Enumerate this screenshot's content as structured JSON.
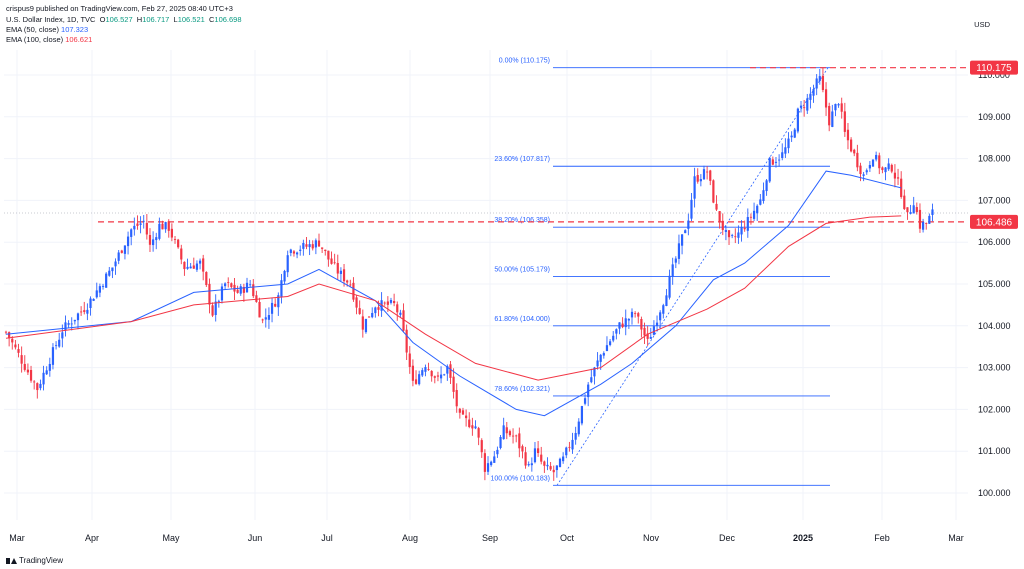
{
  "header": {
    "publisher": "crispus9 published on TradingView.com, Feb 27, 2025 08:40 UTC+3",
    "symbol": "U.S. Dollar Index, 1D, TVC",
    "ohlc": {
      "o_label": "O",
      "o": "106.527",
      "h_label": "H",
      "h": "106.717",
      "l_label": "L",
      "l": "106.521",
      "c_label": "C",
      "c": "106.698"
    },
    "ema50": {
      "label": "EMA (50, close)",
      "value": "107.323"
    },
    "ema100": {
      "label": "EMA (100, close)",
      "value": "106.621"
    }
  },
  "currency": "USD",
  "brand": "TradingView",
  "colors": {
    "up": "#2962ff",
    "down": "#f23645",
    "ema50": "#2962ff",
    "ema100": "#f23645",
    "fib": "#2962ff",
    "grid": "#f0f3fa",
    "axis_text": "#131722"
  },
  "chart_data": {
    "type": "candlestick",
    "x_ticks": [
      "Mar",
      "Apr",
      "May",
      "Jun",
      "Jul",
      "Aug",
      "Sep",
      "Oct",
      "Nov",
      "Dec",
      "2025",
      "Feb",
      "Mar"
    ],
    "y_ticks": [
      "100.000",
      "101.000",
      "102.000",
      "103.000",
      "104.000",
      "105.000",
      "106.000",
      "107.000",
      "108.000",
      "109.000",
      "110.000"
    ],
    "ylim": [
      99.6,
      110.9
    ],
    "price_labels": [
      {
        "text": "110.175",
        "value": 110.175,
        "color": "#f23645"
      },
      {
        "text": "106.486",
        "value": 106.486,
        "color": "#f23645"
      }
    ],
    "fib_levels": [
      {
        "label": "0.00% (110.175)",
        "value": 110.175
      },
      {
        "label": "23.60% (107.817)",
        "value": 107.817
      },
      {
        "label": "38.20% (106.358)",
        "value": 106.358
      },
      {
        "label": "50.00% (105.179)",
        "value": 105.179
      },
      {
        "label": "61.80% (104.000)",
        "value": 104.0
      },
      {
        "label": "78.60% (102.321)",
        "value": 102.321
      },
      {
        "label": "100.00% (100.183)",
        "value": 100.183
      }
    ],
    "candles": {
      "count": 260,
      "anchors": [
        [
          0,
          103.85
        ],
        [
          10,
          102.5
        ],
        [
          18,
          103.9
        ],
        [
          26,
          104.5
        ],
        [
          34,
          105.4
        ],
        [
          40,
          106.3
        ],
        [
          44,
          106.5
        ],
        [
          46,
          105.9
        ],
        [
          49,
          106.4
        ],
        [
          52,
          106.35
        ],
        [
          57,
          105.4
        ],
        [
          62,
          105.5
        ],
        [
          66,
          104.3
        ],
        [
          70,
          105.0
        ],
        [
          74,
          104.8
        ],
        [
          78,
          105.0
        ],
        [
          82,
          104.1
        ],
        [
          87,
          104.7
        ],
        [
          90,
          105.8
        ],
        [
          96,
          105.9
        ],
        [
          100,
          106.0
        ],
        [
          103,
          105.6
        ],
        [
          106,
          105.3
        ],
        [
          110,
          105.0
        ],
        [
          114,
          104.0
        ],
        [
          118,
          104.5
        ],
        [
          124,
          104.5
        ],
        [
          126,
          104.2
        ],
        [
          130,
          102.6
        ],
        [
          134,
          103.1
        ],
        [
          138,
          102.7
        ],
        [
          141,
          103.0
        ],
        [
          145,
          101.8
        ],
        [
          150,
          101.6
        ],
        [
          153,
          100.6
        ],
        [
          156,
          100.9
        ],
        [
          159,
          101.5
        ],
        [
          163,
          101.3
        ],
        [
          167,
          100.6
        ],
        [
          169,
          101.0
        ],
        [
          172,
          100.6
        ],
        [
          175,
          100.5
        ],
        [
          178,
          100.8
        ],
        [
          182,
          101.5
        ],
        [
          186,
          102.6
        ],
        [
          190,
          103.3
        ],
        [
          196,
          104.0
        ],
        [
          201,
          104.3
        ],
        [
          205,
          103.6
        ],
        [
          210,
          104.6
        ],
        [
          214,
          105.6
        ],
        [
          218,
          106.6
        ],
        [
          220,
          107.5
        ],
        [
          224,
          107.7
        ],
        [
          227,
          106.7
        ],
        [
          231,
          106.0
        ],
        [
          234,
          106.2
        ],
        [
          237,
          106.5
        ],
        [
          241,
          107.0
        ],
        [
          244,
          107.9
        ],
        [
          248,
          108.1
        ],
        [
          251,
          108.5
        ],
        [
          253,
          109.1
        ],
        [
          256,
          109.4
        ],
        [
          259,
          109.8
        ]
      ],
      "anchors_2025": [
        [
          0,
          109.9
        ],
        [
          3,
          108.9
        ],
        [
          6,
          109.4
        ],
        [
          8,
          108.6
        ],
        [
          12,
          107.9
        ],
        [
          14,
          107.6
        ],
        [
          17,
          108.1
        ],
        [
          20,
          107.7
        ],
        [
          23,
          107.8
        ],
        [
          26,
          107.2
        ],
        [
          28,
          106.6
        ],
        [
          30,
          107.0
        ],
        [
          32,
          106.4
        ],
        [
          34,
          106.45
        ],
        [
          36,
          106.7
        ]
      ]
    },
    "ema50": [
      [
        0,
        103.8
      ],
      [
        40,
        104.1
      ],
      [
        60,
        104.8
      ],
      [
        90,
        105.0
      ],
      [
        100,
        105.35
      ],
      [
        118,
        104.6
      ],
      [
        130,
        103.6
      ],
      [
        145,
        102.8
      ],
      [
        163,
        102.0
      ],
      [
        172,
        101.85
      ],
      [
        190,
        102.6
      ],
      [
        200,
        103.1
      ],
      [
        214,
        104.0
      ],
      [
        226,
        105.1
      ],
      [
        236,
        105.5
      ],
      [
        250,
        106.4
      ],
      [
        262,
        107.7
      ],
      [
        270,
        107.6
      ],
      [
        286,
        107.3
      ]
    ],
    "ema100": [
      [
        0,
        103.7
      ],
      [
        40,
        104.1
      ],
      [
        60,
        104.5
      ],
      [
        90,
        104.7
      ],
      [
        100,
        105.0
      ],
      [
        118,
        104.6
      ],
      [
        134,
        103.8
      ],
      [
        150,
        103.1
      ],
      [
        170,
        102.7
      ],
      [
        190,
        103.0
      ],
      [
        205,
        103.8
      ],
      [
        224,
        104.4
      ],
      [
        236,
        104.9
      ],
      [
        250,
        105.9
      ],
      [
        262,
        106.45
      ],
      [
        276,
        106.6
      ],
      [
        286,
        106.63
      ]
    ]
  }
}
